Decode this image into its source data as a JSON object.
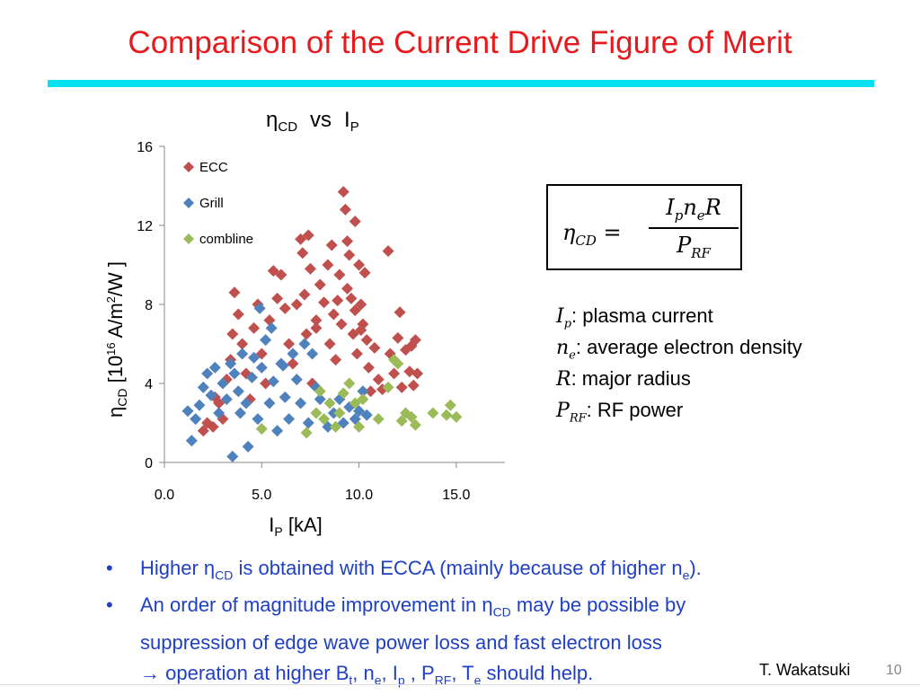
{
  "slide": {
    "title": "Comparison of the Current Drive Figure of Merit",
    "accent": "#00e0f0",
    "title_color": "#e8191c"
  },
  "chart_data": {
    "type": "scatter",
    "title": "ηCD vs IP",
    "xlabel": "IP [kA]",
    "ylabel": "ηCD [10^16 A/m^2/W]",
    "xlim": [
      0,
      17.5
    ],
    "ylim": [
      0,
      16
    ],
    "xticks": [
      "0.0",
      "5.0",
      "10.0",
      "15.0"
    ],
    "yticks": [
      "0",
      "4",
      "8",
      "12",
      "16"
    ],
    "grid": false,
    "legend_position": "top-left",
    "series": [
      {
        "name": "ECC",
        "color": "#c0504d",
        "marker": "diamond",
        "points": [
          [
            2.0,
            1.6
          ],
          [
            2.2,
            2.0
          ],
          [
            2.5,
            1.8
          ],
          [
            2.6,
            3.3
          ],
          [
            2.8,
            3.0
          ],
          [
            3.0,
            2.2
          ],
          [
            3.2,
            4.2
          ],
          [
            3.4,
            5.2
          ],
          [
            3.5,
            6.5
          ],
          [
            3.6,
            8.6
          ],
          [
            3.8,
            7.5
          ],
          [
            4.0,
            6.0
          ],
          [
            4.2,
            4.5
          ],
          [
            4.4,
            3.2
          ],
          [
            4.6,
            6.8
          ],
          [
            4.8,
            8.0
          ],
          [
            5.0,
            5.5
          ],
          [
            5.2,
            4.0
          ],
          [
            5.4,
            7.2
          ],
          [
            5.6,
            9.7
          ],
          [
            5.8,
            8.3
          ],
          [
            6.0,
            9.5
          ],
          [
            6.2,
            7.8
          ],
          [
            6.4,
            6.0
          ],
          [
            6.6,
            5.0
          ],
          [
            6.8,
            8.0
          ],
          [
            7.0,
            11.3
          ],
          [
            7.1,
            10.6
          ],
          [
            7.2,
            8.5
          ],
          [
            7.3,
            6.5
          ],
          [
            7.4,
            11.5
          ],
          [
            7.5,
            9.8
          ],
          [
            7.6,
            4.0
          ],
          [
            7.8,
            7.2
          ],
          [
            8.0,
            9.0
          ],
          [
            8.2,
            8.1
          ],
          [
            8.4,
            10.0
          ],
          [
            8.5,
            6.0
          ],
          [
            8.6,
            11.0
          ],
          [
            8.7,
            7.5
          ],
          [
            8.8,
            5.2
          ],
          [
            9.0,
            9.5
          ],
          [
            9.1,
            7.0
          ],
          [
            9.2,
            13.7
          ],
          [
            9.3,
            12.8
          ],
          [
            9.4,
            11.2
          ],
          [
            9.5,
            10.5
          ],
          [
            9.6,
            8.3
          ],
          [
            9.7,
            6.5
          ],
          [
            9.8,
            12.2
          ],
          [
            9.9,
            5.5
          ],
          [
            10.0,
            10.0
          ],
          [
            10.1,
            8.0
          ],
          [
            10.2,
            7.0
          ],
          [
            10.3,
            9.6
          ],
          [
            10.4,
            6.2
          ],
          [
            10.5,
            4.8
          ],
          [
            10.6,
            3.6
          ],
          [
            10.8,
            5.8
          ],
          [
            11.0,
            4.2
          ],
          [
            11.2,
            3.7
          ],
          [
            11.5,
            10.7
          ],
          [
            11.6,
            5.5
          ],
          [
            11.8,
            4.5
          ],
          [
            12.0,
            6.3
          ],
          [
            12.1,
            7.6
          ],
          [
            12.2,
            3.8
          ],
          [
            12.4,
            5.7
          ],
          [
            12.6,
            4.6
          ],
          [
            12.7,
            5.9
          ],
          [
            12.8,
            3.9
          ],
          [
            13.0,
            4.5
          ],
          [
            12.9,
            6.2
          ],
          [
            8.9,
            8.2
          ],
          [
            9.8,
            7.7
          ],
          [
            10.1,
            6.7
          ],
          [
            9.4,
            8.8
          ],
          [
            7.8,
            6.8
          ]
        ]
      },
      {
        "name": "Grill",
        "color": "#4f81bd",
        "marker": "diamond",
        "points": [
          [
            1.2,
            2.6
          ],
          [
            1.4,
            1.1
          ],
          [
            1.6,
            2.2
          ],
          [
            1.8,
            2.9
          ],
          [
            2.0,
            3.8
          ],
          [
            2.2,
            4.5
          ],
          [
            2.4,
            3.4
          ],
          [
            2.6,
            4.8
          ],
          [
            2.8,
            2.5
          ],
          [
            3.0,
            4.0
          ],
          [
            3.2,
            3.2
          ],
          [
            3.4,
            5.0
          ],
          [
            3.5,
            0.3
          ],
          [
            3.6,
            4.5
          ],
          [
            3.8,
            3.6
          ],
          [
            4.0,
            5.5
          ],
          [
            4.2,
            3.0
          ],
          [
            4.3,
            0.8
          ],
          [
            4.5,
            4.3
          ],
          [
            4.6,
            5.3
          ],
          [
            4.8,
            2.2
          ],
          [
            5.0,
            4.8
          ],
          [
            5.2,
            6.2
          ],
          [
            5.4,
            3.0
          ],
          [
            5.6,
            4.1
          ],
          [
            5.8,
            1.6
          ],
          [
            6.0,
            5.0
          ],
          [
            6.2,
            3.3
          ],
          [
            6.4,
            2.2
          ],
          [
            6.6,
            5.5
          ],
          [
            6.8,
            4.2
          ],
          [
            7.0,
            3.0
          ],
          [
            7.2,
            6.0
          ],
          [
            7.4,
            2.0
          ],
          [
            7.6,
            5.5
          ],
          [
            7.8,
            3.8
          ],
          [
            8.0,
            3.2
          ],
          [
            8.4,
            1.8
          ],
          [
            8.7,
            2.5
          ],
          [
            9.0,
            3.2
          ],
          [
            9.2,
            2.0
          ],
          [
            9.5,
            2.8
          ],
          [
            9.8,
            2.2
          ],
          [
            10.0,
            2.6
          ],
          [
            10.2,
            3.6
          ],
          [
            10.4,
            2.4
          ],
          [
            4.9,
            7.8
          ],
          [
            5.5,
            6.8
          ],
          [
            3.9,
            2.5
          ],
          [
            6.1,
            4.9
          ]
        ]
      },
      {
        "name": "combline",
        "color": "#9bbb59",
        "marker": "diamond",
        "points": [
          [
            5.0,
            1.7
          ],
          [
            7.3,
            1.5
          ],
          [
            7.8,
            2.5
          ],
          [
            8.0,
            3.6
          ],
          [
            8.2,
            2.2
          ],
          [
            8.5,
            3.0
          ],
          [
            8.8,
            1.8
          ],
          [
            9.0,
            2.5
          ],
          [
            9.2,
            3.5
          ],
          [
            9.5,
            4.0
          ],
          [
            9.8,
            3.0
          ],
          [
            10.0,
            1.8
          ],
          [
            10.2,
            3.2
          ],
          [
            11.5,
            3.8
          ],
          [
            11.8,
            5.2
          ],
          [
            12.0,
            5.0
          ],
          [
            12.2,
            2.1
          ],
          [
            12.4,
            2.5
          ],
          [
            12.7,
            2.3
          ],
          [
            13.8,
            2.5
          ],
          [
            14.5,
            2.4
          ],
          [
            14.7,
            2.9
          ],
          [
            15.0,
            2.3
          ],
          [
            11.0,
            2.2
          ],
          [
            12.9,
            1.9
          ]
        ]
      }
    ]
  },
  "formula": {
    "lhs": "η",
    "lhs_sub": "CD",
    "eq": " = ",
    "num_I": "I",
    "num_I_sub": "p",
    "num_n": "n",
    "num_n_sub": "e",
    "num_R": "R",
    "den_P": "P",
    "den_P_sub": "RF"
  },
  "definitions": [
    {
      "sym": "I",
      "sub": "p",
      "text": ": plasma current"
    },
    {
      "sym": "n",
      "sub": "e",
      "text": ": average electron density"
    },
    {
      "sym": "R",
      "sub": "",
      "text": ": major radius"
    },
    {
      "sym": "P",
      "sub": "RF",
      "text": ": RF power"
    }
  ],
  "bullets": {
    "b1_a": "Higher ",
    "b1_eta": "η",
    "b1_eta_sub": "CD",
    "b1_b": " is obtained with ECCA (mainly because of higher n",
    "b1_ne_sub": "e",
    "b1_c": ").",
    "b2_a": "An order of magnitude improvement in ",
    "b2_eta": "η",
    "b2_eta_sub": "CD",
    "b2_b": " may be possible by",
    "b2_line2": "suppression of edge wave power loss and fast electron loss",
    "b2_arrow": "→",
    "b2_line3_a": " operation at higher B",
    "b2_bt_sub": "t",
    "b2_line3_b": ", n",
    "b2_ne_sub": "e",
    "b2_line3_c": ", I",
    "b2_ip_sub": "p",
    "b2_line3_d": " , P",
    "b2_prf_sub": "RF",
    "b2_line3_e": ", T",
    "b2_te_sub": "e",
    "b2_line3_f": " should help.",
    "bullet_glyph": "•"
  },
  "footer": {
    "author": "T. Wakatsuki",
    "page": "10"
  }
}
